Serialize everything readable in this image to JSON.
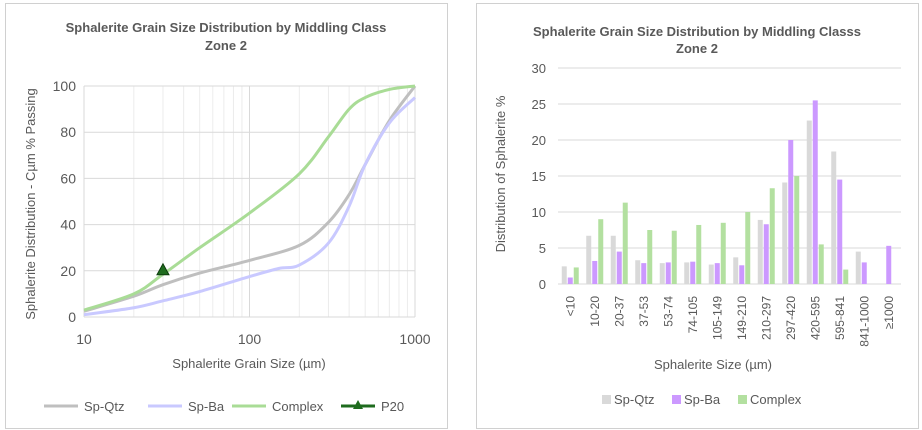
{
  "chart_data": [
    {
      "type": "line",
      "title": [
        "Sphalerite Grain Size Distribution by Middling Class",
        "Zone 2"
      ],
      "xlabel": "Sphalerite Grain Size (µm)",
      "ylabel": "Sphalerite Distribution - Cµm % Passing",
      "xscale": "log",
      "xlim": [
        10,
        1000
      ],
      "ylim": [
        0,
        100
      ],
      "xticks": [
        "10",
        "100",
        "1000"
      ],
      "yticks": [
        "0",
        "20",
        "40",
        "60",
        "80",
        "100"
      ],
      "grid": true,
      "legend": "bottom",
      "series": [
        {
          "name": "Sp-Qtz",
          "color": "#bfbfbf",
          "x": [
            10,
            20,
            30,
            50,
            100,
            200,
            300,
            400,
            500,
            700,
            1000
          ],
          "y": [
            2.5,
            9,
            14,
            19,
            24.5,
            31,
            41,
            53,
            66,
            85,
            100
          ]
        },
        {
          "name": "Sp-Ba",
          "color": "#c9c9ff",
          "x": [
            10,
            20,
            30,
            50,
            100,
            150,
            200,
            300,
            400,
            500,
            700,
            1000
          ],
          "y": [
            1,
            4,
            7,
            11,
            17.5,
            21,
            22.5,
            32,
            48,
            66,
            84,
            95
          ]
        },
        {
          "name": "Complex",
          "color": "#a9dc96",
          "x": [
            10,
            20,
            30,
            50,
            100,
            200,
            300,
            400,
            500,
            700,
            1000
          ],
          "y": [
            3,
            10,
            18.5,
            30,
            45,
            62,
            78,
            90,
            95,
            98.5,
            100
          ]
        },
        {
          "name": "P20",
          "color": "#1e6b1e",
          "marker": "triangle",
          "x": [
            30
          ],
          "y": [
            20
          ]
        }
      ]
    },
    {
      "type": "bar",
      "title": [
        "Sphalerite Grain Size Distribution by Middling Classs",
        "Zone 2"
      ],
      "xlabel": "Sphalerite Size (µm)",
      "ylabel": "Distribution of Sphalerite %",
      "ylim": [
        0,
        30
      ],
      "yticks": [
        "0",
        "5",
        "10",
        "15",
        "20",
        "25",
        "30"
      ],
      "grid": true,
      "legend": "bottom",
      "categories": [
        "<10",
        "10-20",
        "20-37",
        "37-53",
        "53-74",
        "74-105",
        "105-149",
        "149-210",
        "210-297",
        "297-420",
        "420-595",
        "595-841",
        "841-1000",
        "≥1000"
      ],
      "series": [
        {
          "name": "Sp-Qtz",
          "color": "#d9d9d9",
          "values": [
            2.45,
            6.7,
            6.7,
            3.3,
            2.9,
            3.0,
            2.7,
            3.7,
            8.9,
            14.1,
            22.7,
            18.4,
            4.5,
            0
          ]
        },
        {
          "name": "Sp-Ba",
          "color": "#cc99ff",
          "values": [
            0.9,
            3.2,
            4.5,
            2.9,
            3.0,
            3.1,
            2.9,
            2.6,
            8.3,
            20.0,
            25.5,
            14.5,
            3.0,
            5.3
          ]
        },
        {
          "name": "Complex",
          "color": "#b3e0a0",
          "values": [
            2.3,
            9.0,
            11.3,
            7.5,
            7.4,
            8.2,
            8.5,
            10.0,
            13.3,
            15.0,
            5.5,
            2.0,
            0,
            0
          ]
        }
      ]
    }
  ]
}
